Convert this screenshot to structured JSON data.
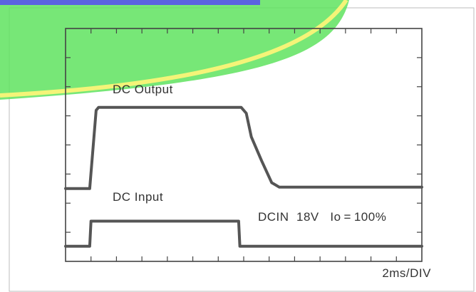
{
  "chart_data": {
    "type": "line",
    "x_divisions": 14,
    "y_divisions": 8,
    "grid": false,
    "xlabel": "2ms/DIV",
    "annotation": "DCIN  18V   Io = 100%",
    "series": [
      {
        "name": "DC Output",
        "x": [
          0,
          0.95,
          1.2,
          1.3,
          6.9,
          7.1,
          7.3,
          7.7,
          8.1,
          8.4,
          14
        ],
        "y": [
          1.45,
          1.45,
          4.1,
          4.2,
          4.2,
          4.0,
          3.2,
          2.4,
          1.65,
          1.5,
          1.5
        ]
      },
      {
        "name": "DC Input",
        "x": [
          0,
          0.95,
          1.0,
          6.8,
          6.85,
          14
        ],
        "y": [
          -0.5,
          -0.5,
          0.35,
          0.35,
          -0.5,
          -0.5
        ]
      }
    ]
  },
  "overlay": {
    "band_green": "#5fe35f",
    "band_yellow": "#f4f478",
    "bar_blue": "#5b63e0"
  }
}
